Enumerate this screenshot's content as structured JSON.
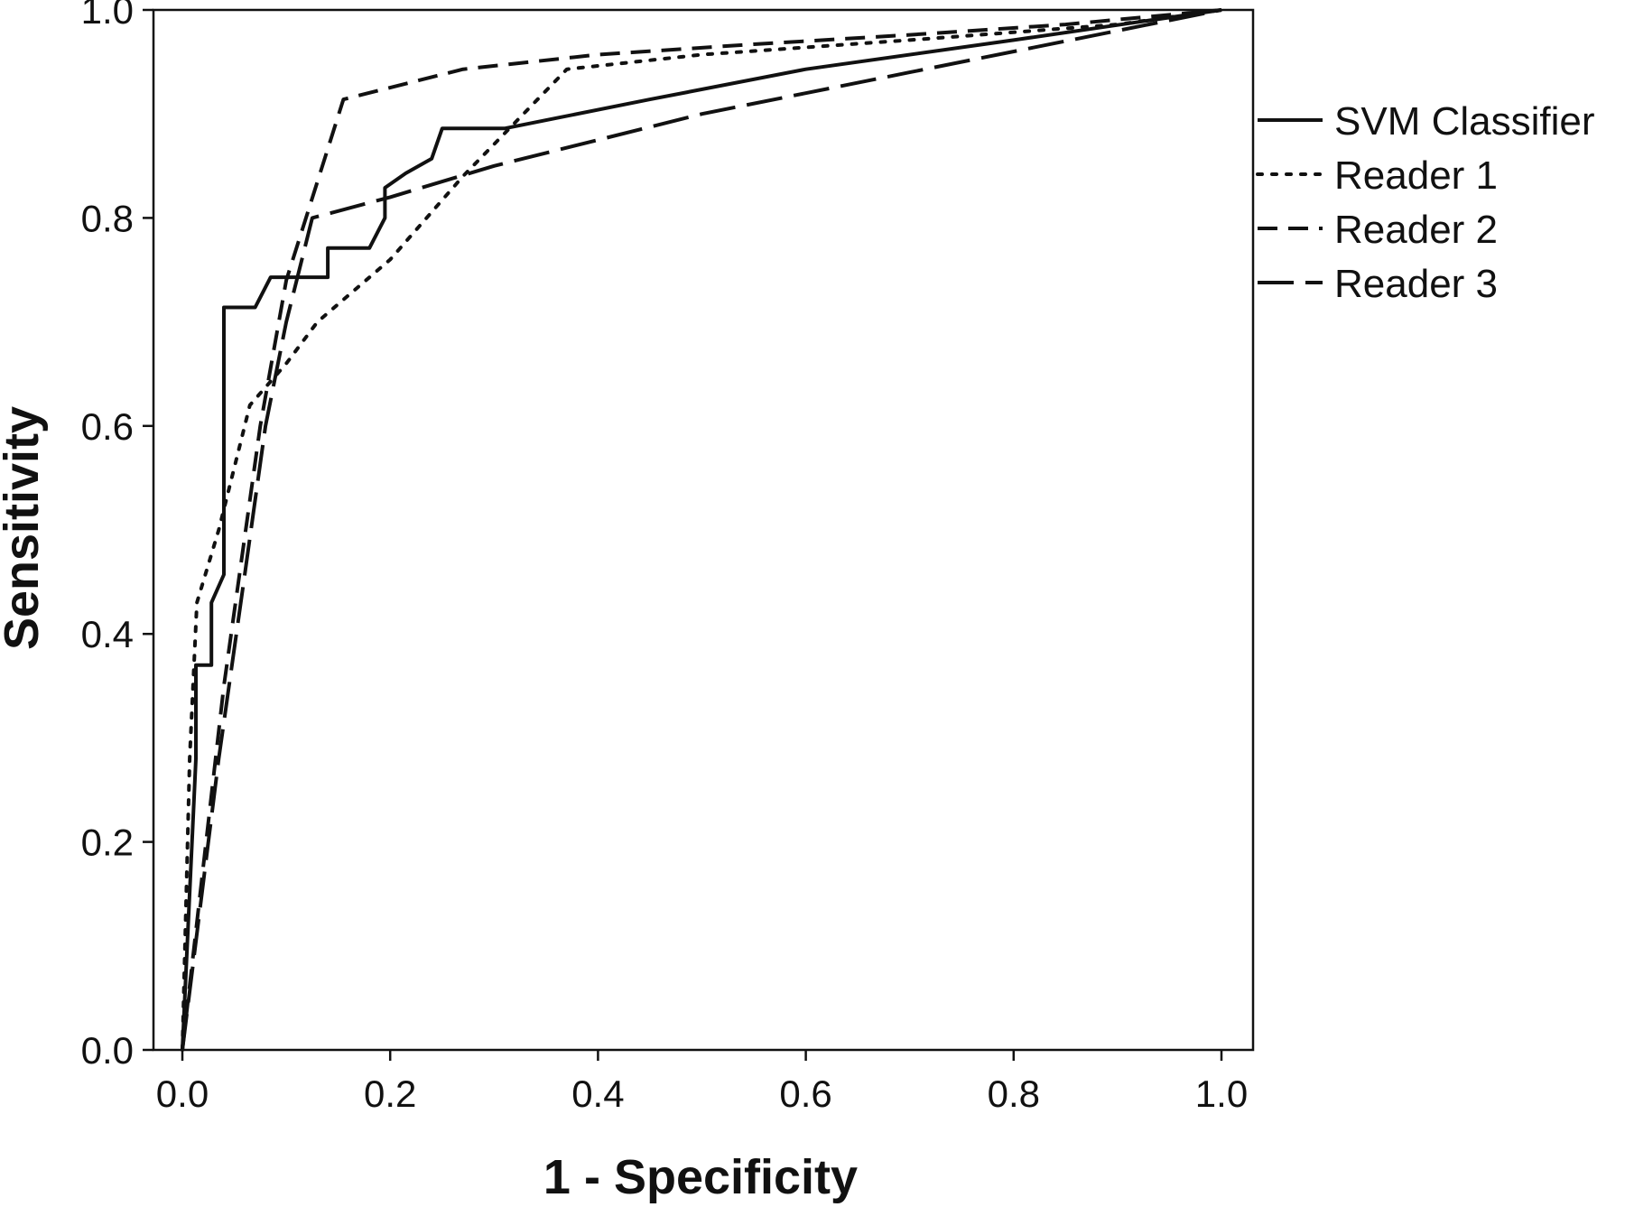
{
  "chart_data": {
    "type": "line",
    "title": "",
    "xlabel": "1 - Specificity",
    "ylabel": "Sensitivity",
    "xlim": [
      0.0,
      1.0
    ],
    "ylim": [
      0.0,
      1.0
    ],
    "xticks": [
      "0.0",
      "0.2",
      "0.4",
      "0.6",
      "0.8",
      "1.0"
    ],
    "yticks": [
      "0.0",
      "0.2",
      "0.4",
      "0.6",
      "0.8",
      "1.0"
    ],
    "grid": false,
    "legend_position": "right",
    "series": [
      {
        "name": "SVM Classifier",
        "style": "solid",
        "x": [
          0.0,
          0.013,
          0.013,
          0.028,
          0.028,
          0.04,
          0.04,
          0.07,
          0.085,
          0.14,
          0.14,
          0.18,
          0.195,
          0.195,
          0.215,
          0.24,
          0.25,
          0.31,
          0.45,
          0.6,
          0.8,
          1.0
        ],
        "y": [
          0.0,
          0.28,
          0.37,
          0.37,
          0.43,
          0.457,
          0.714,
          0.714,
          0.743,
          0.743,
          0.771,
          0.771,
          0.8,
          0.829,
          0.843,
          0.857,
          0.886,
          0.886,
          0.914,
          0.943,
          0.971,
          1.0
        ]
      },
      {
        "name": "Reader 1",
        "style": "dotted",
        "x": [
          0.0,
          0.007,
          0.014,
          0.035,
          0.065,
          0.1,
          0.13,
          0.2,
          0.27,
          0.37,
          0.5,
          0.7,
          0.9,
          1.0
        ],
        "y": [
          0.0,
          0.28,
          0.43,
          0.5,
          0.62,
          0.66,
          0.7,
          0.76,
          0.84,
          0.943,
          0.957,
          0.971,
          0.986,
          1.0
        ]
      },
      {
        "name": "Reader 2",
        "style": "dashed",
        "x": [
          0.0,
          0.04,
          0.075,
          0.1,
          0.155,
          0.27,
          0.4,
          0.55,
          0.7,
          0.85,
          1.0
        ],
        "y": [
          0.0,
          0.35,
          0.6,
          0.74,
          0.914,
          0.943,
          0.957,
          0.967,
          0.976,
          0.986,
          1.0
        ]
      },
      {
        "name": "Reader 3",
        "style": "longdash",
        "x": [
          0.0,
          0.035,
          0.06,
          0.08,
          0.1,
          0.125,
          0.2,
          0.3,
          0.5,
          0.7,
          0.9,
          1.0
        ],
        "y": [
          0.0,
          0.28,
          0.457,
          0.6,
          0.7,
          0.8,
          0.82,
          0.85,
          0.9,
          0.94,
          0.98,
          1.0
        ]
      }
    ]
  }
}
